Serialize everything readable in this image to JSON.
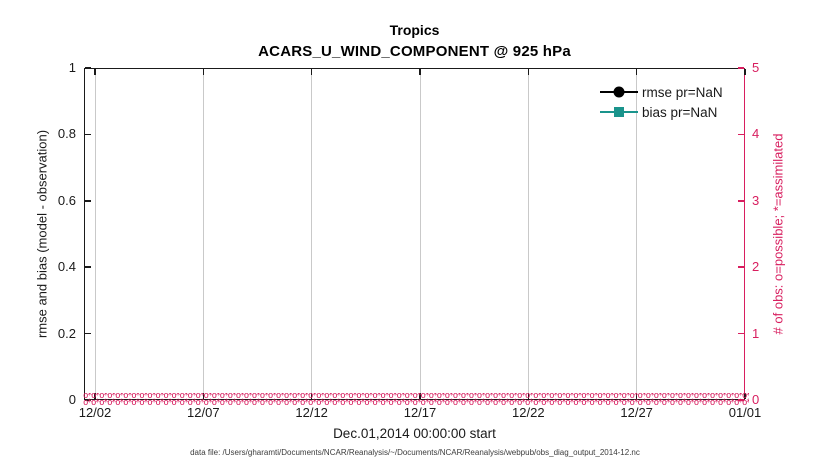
{
  "figure": {
    "title": "Tropics",
    "subtitle": "ACARS_U_WIND_COMPONENT @ 925 hPa",
    "xlabel": "Dec.01,2014 00:00:00 start",
    "footer": "data file: /Users/gharamti/Documents/NCAR/Reanalysis/~/Documents/NCAR/Reanalysis/webpub/obs_diag_output_2014-12.nc"
  },
  "axes": {
    "left": {
      "label": "rmse and bias (model - observation)",
      "ticks": [
        "0",
        "0.2",
        "0.4",
        "0.6",
        "0.8",
        "1"
      ],
      "color": "#1a1a1a"
    },
    "right": {
      "label": "# of obs: o=possible; *=assimilated",
      "ticks": [
        "0",
        "1",
        "2",
        "3",
        "4",
        "5"
      ],
      "color": "#d81e5f"
    },
    "x": {
      "ticks": [
        "12/02",
        "12/07",
        "12/12",
        "12/17",
        "12/22",
        "12/27",
        "01/01"
      ]
    }
  },
  "legend": {
    "items": [
      {
        "label": "rmse pr=NaN",
        "color": "#000000",
        "marker": "circle"
      },
      {
        "label": "bias pr=NaN",
        "color": "#1a948c",
        "marker": "square"
      }
    ]
  },
  "obs_band": {
    "pattern": "o*",
    "repeat": 110,
    "color": "#d81e5f"
  },
  "chart_data": {
    "type": "line",
    "title": "Tropics",
    "subtitle": "ACARS_U_WIND_COMPONENT @ 925 hPa",
    "xlabel": "Dec.01,2014 00:00:00 start",
    "ylabel_left": "rmse and bias (model - observation)",
    "ylabel_right": "# of obs: o=possible; *=assimilated",
    "x_tick_labels": [
      "12/02",
      "12/07",
      "12/12",
      "12/17",
      "12/22",
      "12/27",
      "01/01"
    ],
    "x_range": "Dec 01 2014 00:00 to Jan 01 2015",
    "ylim_left": [
      0,
      1
    ],
    "yticks_left": [
      0,
      0.2,
      0.4,
      0.6,
      0.8,
      1
    ],
    "ylim_right": [
      0,
      5
    ],
    "yticks_right": [
      0,
      1,
      2,
      3,
      4,
      5
    ],
    "grid": "faint vertical gridlines at each x tick only",
    "legend_position": "upper right, no box",
    "series": [
      {
        "name": "rmse pr=NaN",
        "axis": "left",
        "color": "#000000",
        "marker": "filled-circle",
        "values": "all NaN - no curve drawn"
      },
      {
        "name": "bias pr=NaN",
        "axis": "left",
        "color": "#1a948c",
        "marker": "filled-square",
        "values": "all NaN - no curve drawn"
      },
      {
        "name": "# obs possible (o)",
        "axis": "right",
        "color": "#d81e5f",
        "marker": "o",
        "values": "0 at every time bin (dense band along y=0)"
      },
      {
        "name": "# obs assimilated (*)",
        "axis": "right",
        "color": "#d81e5f",
        "marker": "*",
        "values": "0 at every time bin (dense band along y=0)"
      }
    ]
  }
}
